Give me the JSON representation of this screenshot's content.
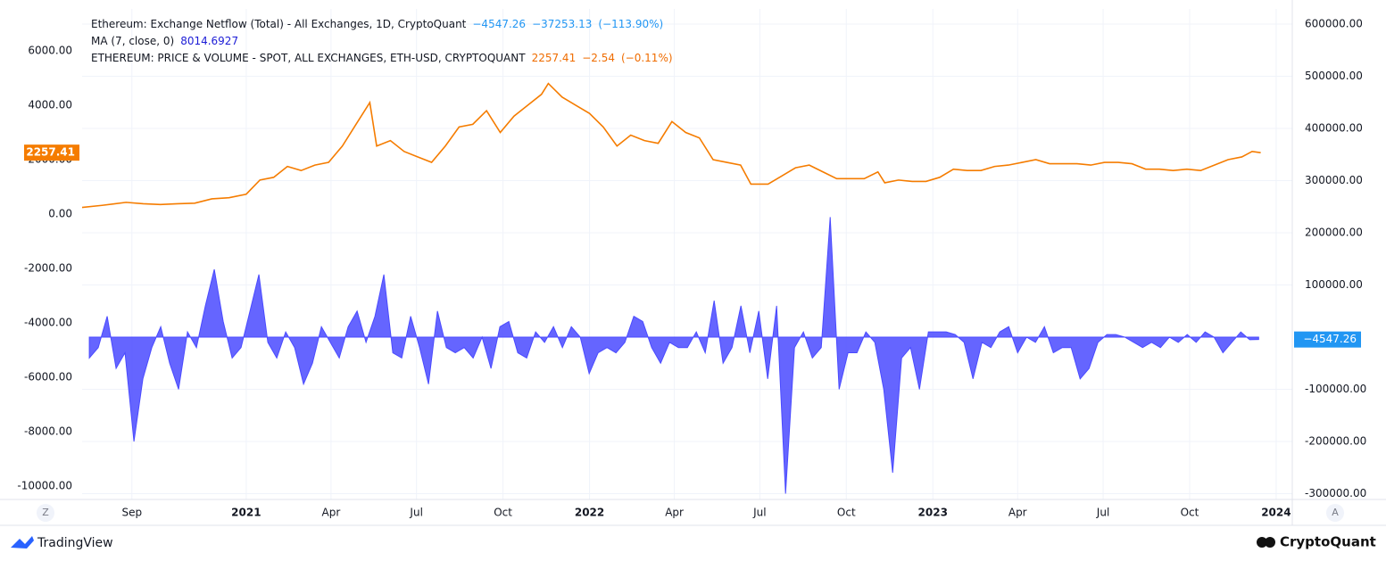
{
  "chart_data": {
    "type": "line",
    "legend": {
      "rows": [
        {
          "name": "Ethereum: Exchange Netflow (Total) - All Exchanges, 1D, CryptoQuant",
          "items": [
            "−4547.26",
            "−37253.13",
            "(−113.90%)"
          ]
        },
        {
          "name": "MA (7, close, 0)",
          "items": [
            "8014.6927"
          ]
        },
        {
          "name": "ETHEREUM: PRICE & VOLUME - SPOT, ALL EXCHANGES, ETH-USD, CRYPTOQUANT",
          "items": [
            "2257.41",
            "−2.54",
            "(−0.11%)"
          ]
        }
      ]
    },
    "xlim": [
      2020.522,
      2024.047
    ],
    "xticks": [
      {
        "value": 2020.667,
        "label": "Sep"
      },
      {
        "value": 2021,
        "label": "2021"
      },
      {
        "value": 2021.247,
        "label": "Apr"
      },
      {
        "value": 2021.496,
        "label": "Jul"
      },
      {
        "value": 2021.748,
        "label": "Oct"
      },
      {
        "value": 2022,
        "label": "2022"
      },
      {
        "value": 2022.247,
        "label": "Apr"
      },
      {
        "value": 2022.496,
        "label": "Jul"
      },
      {
        "value": 2022.748,
        "label": "Oct"
      },
      {
        "value": 2023,
        "label": "2023"
      },
      {
        "value": 2023.247,
        "label": "Apr"
      },
      {
        "value": 2023.496,
        "label": "Jul"
      },
      {
        "value": 2023.748,
        "label": "Oct"
      },
      {
        "value": 2024,
        "label": "2024"
      }
    ],
    "ylim": [
      -10426,
      7541
    ],
    "yticks": [
      {
        "value": 6000,
        "label": "6000.00"
      },
      {
        "value": 4000,
        "label": "4000.00"
      },
      {
        "value": 2000,
        "label": "2000.00"
      },
      {
        "value": 0,
        "label": "0.00"
      },
      {
        "value": -2000,
        "label": "-2000.00"
      },
      {
        "value": -4000,
        "label": "-4000.00"
      },
      {
        "value": -6000,
        "label": "-6000.00"
      },
      {
        "value": -8000,
        "label": "-8000.00"
      },
      {
        "value": -10000,
        "label": "-10000.00"
      }
    ],
    "y2lim": [
      -307692,
      629060
    ],
    "y2ticks": [
      {
        "value": 600000,
        "label": "600000.00"
      },
      {
        "value": 500000,
        "label": "500000.00"
      },
      {
        "value": 400000,
        "label": "400000.00"
      },
      {
        "value": 300000,
        "label": "300000.00"
      },
      {
        "value": 200000,
        "label": "200000.00"
      },
      {
        "value": 100000,
        "label": "100000.00"
      },
      {
        "value": -100000,
        "label": "-100000.00"
      },
      {
        "value": -200000,
        "label": "-200000.00"
      },
      {
        "value": -300000,
        "label": "-300000.00"
      }
    ],
    "grid": true,
    "series": [
      {
        "name": "Ethereum: Exchange Netflow (Total)",
        "type": "area",
        "axis": "y2",
        "color": "#4a4aff",
        "last_label": "−4547.26",
        "label_color": "#2196f3",
        "x": [
          2020.543,
          2020.569,
          2020.595,
          2020.621,
          2020.647,
          2020.673,
          2020.699,
          2020.725,
          2020.751,
          2020.777,
          2020.803,
          2020.829,
          2020.855,
          2020.881,
          2020.907,
          2020.933,
          2020.959,
          2020.985,
          2021.011,
          2021.037,
          2021.063,
          2021.089,
          2021.115,
          2021.141,
          2021.167,
          2021.193,
          2021.219,
          2021.245,
          2021.271,
          2021.297,
          2021.323,
          2021.349,
          2021.375,
          2021.401,
          2021.427,
          2021.453,
          2021.479,
          2021.505,
          2021.531,
          2021.557,
          2021.583,
          2021.609,
          2021.635,
          2021.661,
          2021.687,
          2021.713,
          2021.739,
          2021.765,
          2021.791,
          2021.817,
          2021.843,
          2021.869,
          2021.895,
          2021.921,
          2021.947,
          2021.973,
          2021.999,
          2022.025,
          2022.051,
          2022.077,
          2022.103,
          2022.129,
          2022.155,
          2022.181,
          2022.207,
          2022.233,
          2022.259,
          2022.285,
          2022.311,
          2022.337,
          2022.363,
          2022.389,
          2022.415,
          2022.441,
          2022.467,
          2022.493,
          2022.519,
          2022.545,
          2022.571,
          2022.597,
          2022.623,
          2022.649,
          2022.675,
          2022.701,
          2022.727,
          2022.753,
          2022.779,
          2022.805,
          2022.831,
          2022.857,
          2022.883,
          2022.909,
          2022.935,
          2022.961,
          2022.987,
          2023.013,
          2023.039,
          2023.065,
          2023.091,
          2023.117,
          2023.143,
          2023.169,
          2023.195,
          2023.221,
          2023.247,
          2023.273,
          2023.299,
          2023.325,
          2023.351,
          2023.377,
          2023.403,
          2023.429,
          2023.455,
          2023.481,
          2023.507,
          2023.533,
          2023.559,
          2023.585,
          2023.611,
          2023.637,
          2023.663,
          2023.689,
          2023.715,
          2023.741,
          2023.767,
          2023.793,
          2023.819,
          2023.845,
          2023.871,
          2023.897,
          2023.923,
          2023.949
        ],
        "values": [
          -40000,
          -20000,
          40000,
          -60000,
          -30000,
          -200000,
          -80000,
          -20000,
          20000,
          -50000,
          -100000,
          10000,
          -20000,
          60000,
          130000,
          30000,
          -40000,
          -20000,
          50000,
          120000,
          -10000,
          -40000,
          10000,
          -20000,
          -90000,
          -50000,
          20000,
          -10000,
          -40000,
          20000,
          50000,
          -10000,
          40000,
          120000,
          -30000,
          -40000,
          40000,
          -20000,
          -90000,
          50000,
          -20000,
          -30000,
          -20000,
          -40000,
          0,
          -60000,
          20000,
          30000,
          -30000,
          -40000,
          10000,
          -10000,
          20000,
          -20000,
          20000,
          0,
          -70000,
          -30000,
          -20000,
          -30000,
          -10000,
          40000,
          30000,
          -20000,
          -50000,
          -10000,
          -20000,
          -20000,
          10000,
          -30000,
          70000,
          -50000,
          -20000,
          60000,
          -30000,
          50000,
          -80000,
          60000,
          -300000,
          -20000,
          10000,
          -40000,
          -20000,
          230000,
          -100000,
          -30000,
          -30000,
          10000,
          -10000,
          -100000,
          -260000,
          -40000,
          -20000,
          -100000,
          10000,
          10000,
          10000,
          5000,
          -10000,
          -80000,
          -10000,
          -20000,
          10000,
          20000,
          -30000,
          0,
          -10000,
          20000,
          -30000,
          -20000,
          -20000,
          -80000,
          -60000,
          -10000,
          5000,
          5000,
          0,
          -10000,
          -20000,
          -10000,
          -20000,
          0,
          -10000,
          5000,
          -10000,
          10000,
          0,
          -30000,
          -10000,
          10000,
          -5000,
          -4547.26
        ]
      },
      {
        "name": "ETHEREUM: PRICE & VOLUME - SPOT",
        "type": "line",
        "axis": "y",
        "color": "#f57c00",
        "last_label": "2257.41",
        "label_color": "#f57c00",
        "x": [
          2020.52,
          2020.58,
          2020.65,
          2020.7,
          2020.75,
          2020.8,
          2020.85,
          2020.9,
          2020.95,
          2021.0,
          2021.04,
          2021.08,
          2021.12,
          2021.16,
          2021.2,
          2021.24,
          2021.28,
          2021.32,
          2021.36,
          2021.38,
          2021.42,
          2021.46,
          2021.5,
          2021.54,
          2021.58,
          2021.62,
          2021.66,
          2021.7,
          2021.74,
          2021.78,
          2021.82,
          2021.86,
          2021.88,
          2021.92,
          2021.96,
          2022.0,
          2022.04,
          2022.08,
          2022.12,
          2022.16,
          2022.2,
          2022.24,
          2022.28,
          2022.32,
          2022.36,
          2022.4,
          2022.44,
          2022.47,
          2022.52,
          2022.56,
          2022.6,
          2022.64,
          2022.68,
          2022.72,
          2022.76,
          2022.8,
          2022.84,
          2022.86,
          2022.9,
          2022.94,
          2022.98,
          2023.02,
          2023.06,
          2023.1,
          2023.14,
          2023.18,
          2023.22,
          2023.26,
          2023.3,
          2023.34,
          2023.38,
          2023.42,
          2023.46,
          2023.5,
          2023.54,
          2023.58,
          2023.62,
          2023.66,
          2023.7,
          2023.74,
          2023.78,
          2023.82,
          2023.86,
          2023.9,
          2023.93,
          2023.955
        ],
        "values": [
          240,
          320,
          430,
          380,
          350,
          380,
          400,
          560,
          600,
          730,
          1250,
          1350,
          1750,
          1600,
          1800,
          1900,
          2500,
          3300,
          4100,
          2500,
          2700,
          2300,
          2100,
          1900,
          2500,
          3200,
          3300,
          3800,
          3000,
          3600,
          4000,
          4400,
          4800,
          4300,
          4000,
          3700,
          3200,
          2500,
          2900,
          2700,
          2600,
          3400,
          3000,
          2800,
          2000,
          1900,
          1800,
          1100,
          1100,
          1400,
          1700,
          1800,
          1550,
          1300,
          1300,
          1300,
          1550,
          1150,
          1250,
          1200,
          1200,
          1350,
          1650,
          1600,
          1600,
          1750,
          1800,
          1900,
          2000,
          1850,
          1850,
          1850,
          1800,
          1900,
          1900,
          1850,
          1650,
          1650,
          1600,
          1650,
          1600,
          1800,
          2000,
          2100,
          2300,
          2257.41
        ]
      }
    ]
  },
  "footer": {
    "left_button": "Z",
    "right_button": "A",
    "tradingview": "TradingView",
    "cryptoquant": "CryptoQuant"
  }
}
